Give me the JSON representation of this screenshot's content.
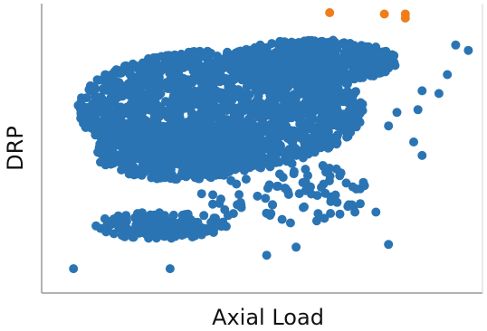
{
  "chart_data": {
    "type": "scatter",
    "title": "",
    "xlabel": "Axial Load",
    "ylabel": "DRP",
    "xlim": [
      0,
      1
    ],
    "ylim": [
      0,
      1
    ],
    "grid": false,
    "legend": "none",
    "series": [
      {
        "color": "#2a74b3",
        "clusters": [
          {
            "cx": 0.4,
            "cy": 0.64,
            "rx": 0.34,
            "ry": 0.22,
            "n": 1700,
            "seed": 11
          },
          {
            "cx": 0.62,
            "cy": 0.82,
            "rx": 0.2,
            "ry": 0.08,
            "n": 600,
            "seed": 23
          },
          {
            "cx": 0.3,
            "cy": 0.48,
            "rx": 0.2,
            "ry": 0.1,
            "n": 500,
            "seed": 37
          },
          {
            "cx": 0.26,
            "cy": 0.21,
            "rx": 0.16,
            "ry": 0.05,
            "n": 180,
            "seed": 51
          },
          {
            "cx": 0.55,
            "cy": 0.33,
            "rx": 0.2,
            "ry": 0.12,
            "n": 90,
            "seed": 67
          }
        ],
        "points": [
          {
            "x": 0.05,
            "y": 0.05
          },
          {
            "x": 0.28,
            "y": 0.05
          },
          {
            "x": 0.51,
            "y": 0.1
          },
          {
            "x": 0.58,
            "y": 0.13
          },
          {
            "x": 0.74,
            "y": 0.37
          },
          {
            "x": 0.77,
            "y": 0.26
          },
          {
            "x": 0.8,
            "y": 0.14
          },
          {
            "x": 0.72,
            "y": 0.26
          },
          {
            "x": 0.86,
            "y": 0.52
          },
          {
            "x": 0.88,
            "y": 0.47
          },
          {
            "x": 0.87,
            "y": 0.64
          },
          {
            "x": 0.88,
            "y": 0.71
          },
          {
            "x": 0.92,
            "y": 0.7
          },
          {
            "x": 0.94,
            "y": 0.77
          },
          {
            "x": 0.96,
            "y": 0.88
          },
          {
            "x": 0.99,
            "y": 0.86
          },
          {
            "x": 0.8,
            "y": 0.58
          },
          {
            "x": 0.82,
            "y": 0.63
          }
        ]
      },
      {
        "color": "#f07d1c",
        "points": [
          {
            "x": 0.66,
            "y": 1.0
          },
          {
            "x": 0.79,
            "y": 0.995
          },
          {
            "x": 0.84,
            "y": 0.995
          },
          {
            "x": 0.84,
            "y": 0.98
          }
        ]
      }
    ]
  }
}
